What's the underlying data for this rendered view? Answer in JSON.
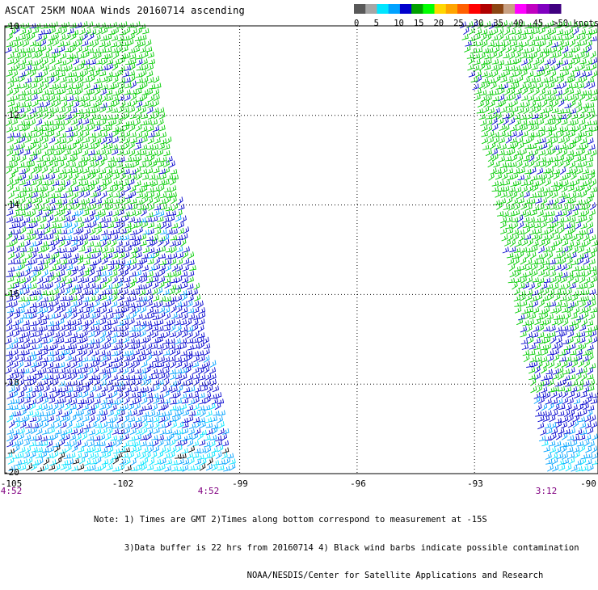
{
  "title": "ASCAT 25KM NOAA Winds 20160714 ascending",
  "colorbar": {
    "segments": [
      {
        "color": "#595959"
      },
      {
        "color": "#a6a6a6"
      },
      {
        "color": "#00e5ff"
      },
      {
        "color": "#00a2ff"
      },
      {
        "color": "#0000cd"
      },
      {
        "color": "#00a000"
      },
      {
        "color": "#00ff00"
      },
      {
        "color": "#ffd700"
      },
      {
        "color": "#ffa500"
      },
      {
        "color": "#ff6000"
      },
      {
        "color": "#ff0000"
      },
      {
        "color": "#b00000"
      },
      {
        "color": "#8b4513"
      },
      {
        "color": "#c8a082"
      },
      {
        "color": "#ff00ff"
      },
      {
        "color": "#c000c0"
      },
      {
        "color": "#8000c0"
      },
      {
        "color": "#400080"
      }
    ],
    "labels": [
      "0",
      "5",
      "10",
      "15",
      "20",
      "25",
      "30",
      "35",
      "40",
      "45",
      ">50 knots"
    ]
  },
  "map": {
    "lat_labels": [
      "-10",
      "-12",
      "-14",
      "-16",
      "-18",
      "-20"
    ],
    "lon_labels": [
      "-105",
      "-102",
      "-99",
      "-96",
      "-93",
      "-90"
    ],
    "time_labels": [
      "4:52",
      "4:52",
      "3:12"
    ],
    "extent": {
      "lon_min": -105,
      "lon_max": -90,
      "lat_min": -20,
      "lat_max": -10
    },
    "swaths": [
      {
        "lat_top": -10,
        "lat_bottom": -20,
        "lon_left_top": -105,
        "lon_right_top": -101.5,
        "lon_left_bottom": -105,
        "lon_right_bottom": -99.2
      },
      {
        "lat_top": -10,
        "lat_bottom": -20,
        "lon_left_top": -93.4,
        "lon_right_top": -90,
        "lon_left_bottom": -91.2,
        "lon_right_bottom": -90
      }
    ]
  },
  "notes": [
    "Note: 1) Times are GMT 2)Times along bottom correspond to measurement at -15S",
    "      3)Data buffer is 22 hrs from 20160714 4) Black wind barbs indicate possible contamination",
    "                              NOAA/NESDIS/Center for Satellite Applications and Research"
  ]
}
